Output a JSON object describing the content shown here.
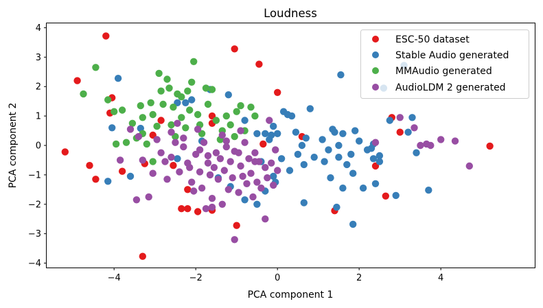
{
  "chart_data": {
    "type": "scatter",
    "title": "Loudness",
    "xlabel": "PCA component 1",
    "ylabel": "PCA component 2",
    "xlim": [
      -5.65,
      6.3
    ],
    "ylim": [
      -4.15,
      4.15
    ],
    "xticks": [
      -4,
      -2,
      0,
      2,
      4
    ],
    "yticks": [
      -4,
      -3,
      -2,
      -1,
      0,
      1,
      2,
      3,
      4
    ],
    "xtick_labels": [
      "−4",
      "−2",
      "0",
      "2",
      "4"
    ],
    "ytick_labels": [
      "−4",
      "−3",
      "−2",
      "−1",
      "0",
      "1",
      "2",
      "3",
      "4"
    ],
    "grid": false,
    "legend_position": "top-right",
    "series": [
      {
        "name": "ESC-50 dataset",
        "color": "#e41a1c",
        "points": [
          [
            -4.2,
            3.72
          ],
          [
            -1.05,
            3.28
          ],
          [
            -0.45,
            2.76
          ],
          [
            -4.9,
            2.2
          ],
          [
            -4.05,
            1.62
          ],
          [
            -4.1,
            1.1
          ],
          [
            -5.2,
            -0.22
          ],
          [
            -4.6,
            -0.68
          ],
          [
            -4.45,
            -1.15
          ],
          [
            -3.8,
            -0.88
          ],
          [
            -3.3,
            -3.77
          ],
          [
            -3.25,
            -0.62
          ],
          [
            -3.05,
            0.35
          ],
          [
            -2.85,
            0.85
          ],
          [
            -2.55,
            -0.68
          ],
          [
            -2.35,
            -2.15
          ],
          [
            -2.2,
            -2.15
          ],
          [
            -2.2,
            -1.5
          ],
          [
            -1.95,
            -2.25
          ],
          [
            -1.6,
            -2.2
          ],
          [
            -1.6,
            0.75
          ],
          [
            -1.6,
            1.0
          ],
          [
            -1.0,
            -2.72
          ],
          [
            0.0,
            1.8
          ],
          [
            -0.35,
            0.05
          ],
          [
            0.6,
            0.3
          ],
          [
            1.4,
            -2.22
          ],
          [
            2.4,
            -0.7
          ],
          [
            2.65,
            -1.72
          ],
          [
            2.8,
            0.95
          ],
          [
            3.0,
            0.45
          ],
          [
            5.2,
            -0.02
          ]
        ]
      },
      {
        "name": "Stable Audio generated",
        "color": "#377eb8",
        "points": [
          [
            -3.9,
            2.28
          ],
          [
            -4.05,
            0.6
          ],
          [
            -4.15,
            -1.22
          ],
          [
            -3.6,
            -1.05
          ],
          [
            -3.35,
            0.58
          ],
          [
            -2.45,
            1.45
          ],
          [
            -2.25,
            1.45
          ],
          [
            -2.1,
            1.55
          ],
          [
            -1.65,
            1.9
          ],
          [
            -1.85,
            0.15
          ],
          [
            -1.2,
            1.72
          ],
          [
            -0.8,
            0.85
          ],
          [
            -0.5,
            0.4
          ],
          [
            -0.3,
            0.4
          ],
          [
            -0.2,
            0.2
          ],
          [
            -0.1,
            0.65
          ],
          [
            0.0,
            0.4
          ],
          [
            0.15,
            1.15
          ],
          [
            0.25,
            1.05
          ],
          [
            0.35,
            1.0
          ],
          [
            0.45,
            0.45
          ],
          [
            0.6,
            0.0
          ],
          [
            0.65,
            -0.65
          ],
          [
            0.7,
            0.25
          ],
          [
            0.8,
            1.25
          ],
          [
            0.9,
            -0.4
          ],
          [
            1.1,
            0.2
          ],
          [
            1.25,
            -0.15
          ],
          [
            1.3,
            -1.1
          ],
          [
            1.4,
            0.45
          ],
          [
            1.5,
            0.0
          ],
          [
            1.6,
            0.4
          ],
          [
            1.7,
            -0.65
          ],
          [
            1.8,
            -0.3
          ],
          [
            1.85,
            -0.95
          ],
          [
            1.9,
            0.5
          ],
          [
            2.0,
            0.15
          ],
          [
            2.1,
            -1.45
          ],
          [
            2.2,
            -0.15
          ],
          [
            2.35,
            0.05
          ],
          [
            2.4,
            -1.3
          ],
          [
            2.5,
            -0.55
          ],
          [
            2.6,
            1.95
          ],
          [
            2.75,
            0.85
          ],
          [
            2.9,
            -1.7
          ],
          [
            3.1,
            2.72
          ],
          [
            3.2,
            0.45
          ],
          [
            3.3,
            0.95
          ],
          [
            3.4,
            -0.25
          ],
          [
            1.55,
            2.4
          ],
          [
            2.3,
            -0.1
          ],
          [
            2.5,
            -0.35
          ],
          [
            -0.8,
            -1.85
          ],
          [
            -0.5,
            -2.0
          ],
          [
            -0.3,
            -1.55
          ],
          [
            -0.1,
            -1.05
          ],
          [
            0.1,
            -0.45
          ],
          [
            0.3,
            -0.85
          ],
          [
            -0.4,
            -0.55
          ],
          [
            -1.15,
            -1.4
          ],
          [
            -1.45,
            -1.1
          ],
          [
            0.65,
            -1.95
          ],
          [
            1.5,
            -0.4
          ],
          [
            1.6,
            -1.45
          ],
          [
            1.45,
            -2.1
          ],
          [
            1.85,
            -2.68
          ],
          [
            3.7,
            -1.52
          ],
          [
            2.35,
            -0.45
          ],
          [
            -2.45,
            -0.45
          ],
          [
            -0.15,
            0.35
          ],
          [
            0.5,
            -0.3
          ],
          [
            1.15,
            -0.55
          ],
          [
            1.35,
            0.55
          ],
          [
            -0.05,
            -1.25
          ]
        ]
      },
      {
        "name": "MMAudio generated",
        "color": "#4daf4a",
        "points": [
          [
            -4.75,
            1.75
          ],
          [
            -4.45,
            2.65
          ],
          [
            -4.15,
            1.55
          ],
          [
            -4.0,
            1.15
          ],
          [
            -3.8,
            1.2
          ],
          [
            -3.7,
            0.1
          ],
          [
            -3.55,
            0.75
          ],
          [
            -3.45,
            0.25
          ],
          [
            -3.3,
            0.95
          ],
          [
            -3.3,
            0.4
          ],
          [
            -3.2,
            0.05
          ],
          [
            -3.1,
            1.45
          ],
          [
            -3.05,
            1.05
          ],
          [
            -2.95,
            0.65
          ],
          [
            -2.9,
            2.45
          ],
          [
            -2.8,
            1.4
          ],
          [
            -2.7,
            2.25
          ],
          [
            -2.65,
            1.95
          ],
          [
            -2.6,
            0.7
          ],
          [
            -2.55,
            1.3
          ],
          [
            -2.5,
            0.3
          ],
          [
            -2.45,
            1.75
          ],
          [
            -2.35,
            0.95
          ],
          [
            -2.25,
            0.6
          ],
          [
            -2.2,
            1.85
          ],
          [
            -2.15,
            1.2
          ],
          [
            -2.05,
            2.85
          ],
          [
            -1.95,
            1.05
          ],
          [
            -1.85,
            0.4
          ],
          [
            -1.75,
            1.95
          ],
          [
            -1.7,
            1.4
          ],
          [
            -1.6,
            1.9
          ],
          [
            -1.5,
            0.85
          ],
          [
            -1.4,
            0.2
          ],
          [
            -1.35,
            0.5
          ],
          [
            -1.25,
            1.0
          ],
          [
            -1.15,
            0.7
          ],
          [
            -1.05,
            0.3
          ],
          [
            -0.9,
            1.35
          ],
          [
            -0.8,
            0.5
          ],
          [
            -0.65,
            1.3
          ],
          [
            -0.55,
            1.0
          ],
          [
            -3.95,
            0.05
          ],
          [
            -3.05,
            -0.55
          ],
          [
            -2.85,
            1.85
          ],
          [
            -2.35,
            1.65
          ],
          [
            -1.9,
            0.7
          ],
          [
            -1.0,
            1.15
          ],
          [
            -2.1,
            2.15
          ],
          [
            -3.35,
            1.35
          ]
        ]
      },
      {
        "name": "AudioLDM 2 generated",
        "color": "#984ea3",
        "points": [
          [
            -3.6,
            0.55
          ],
          [
            -3.4,
            0.3
          ],
          [
            -3.3,
            -0.5
          ],
          [
            -3.05,
            -0.95
          ],
          [
            -2.95,
            0.2
          ],
          [
            -2.85,
            -0.25
          ],
          [
            -2.75,
            -0.55
          ],
          [
            -2.7,
            -1.15
          ],
          [
            -2.6,
            -0.4
          ],
          [
            -2.5,
            0.1
          ],
          [
            -2.4,
            -0.9
          ],
          [
            -2.3,
            -0.05
          ],
          [
            -2.2,
            -0.6
          ],
          [
            -2.1,
            -1.25
          ],
          [
            -2.0,
            -0.3
          ],
          [
            -1.95,
            0.55
          ],
          [
            -1.9,
            -0.9
          ],
          [
            -1.85,
            -1.45
          ],
          [
            -1.8,
            0.1
          ],
          [
            -1.7,
            -0.6
          ],
          [
            -1.65,
            -1.0
          ],
          [
            -1.6,
            -1.8
          ],
          [
            -1.5,
            -0.25
          ],
          [
            -1.45,
            -1.15
          ],
          [
            -1.4,
            -0.45
          ],
          [
            -1.35,
            -2.0
          ],
          [
            -1.3,
            -0.85
          ],
          [
            -1.25,
            0.15
          ],
          [
            -1.2,
            -1.5
          ],
          [
            -1.15,
            -0.55
          ],
          [
            -1.1,
            -1.1
          ],
          [
            -1.05,
            -0.2
          ],
          [
            -0.95,
            -1.6
          ],
          [
            -0.9,
            -0.7
          ],
          [
            -0.85,
            -1.05
          ],
          [
            -0.8,
            0.1
          ],
          [
            -0.75,
            -1.3
          ],
          [
            -0.7,
            -0.45
          ],
          [
            -0.65,
            -0.95
          ],
          [
            -0.6,
            -1.75
          ],
          [
            -0.55,
            -0.25
          ],
          [
            -0.5,
            -1.25
          ],
          [
            -0.45,
            -0.55
          ],
          [
            -0.4,
            -1.45
          ],
          [
            -0.3,
            -0.75
          ],
          [
            -0.25,
            -1.1
          ],
          [
            -0.2,
            0.85
          ],
          [
            -0.15,
            -0.6
          ],
          [
            -0.1,
            -1.35
          ],
          [
            -0.05,
            -0.15
          ],
          [
            -1.05,
            -3.2
          ],
          [
            -0.3,
            -2.5
          ],
          [
            -1.6,
            -2.1
          ],
          [
            -3.45,
            -1.85
          ],
          [
            -3.15,
            -1.75
          ],
          [
            -2.05,
            -1.55
          ],
          [
            -1.75,
            -2.15
          ],
          [
            -2.15,
            -0.75
          ],
          [
            -2.45,
            0.75
          ],
          [
            -1.55,
            -0.75
          ],
          [
            -1.35,
            0.35
          ],
          [
            -0.9,
            0.5
          ],
          [
            -3.85,
            -0.5
          ],
          [
            3.0,
            0.95
          ],
          [
            3.35,
            0.6
          ],
          [
            3.5,
            0.0
          ],
          [
            3.65,
            0.05
          ],
          [
            3.75,
            0.0
          ],
          [
            4.0,
            0.2
          ],
          [
            4.35,
            0.15
          ],
          [
            4.7,
            -0.7
          ],
          [
            2.4,
            0.1
          ],
          [
            -2.6,
            0.45
          ],
          [
            -1.25,
            -0.05
          ],
          [
            -0.55,
            -0.55
          ],
          [
            0.0,
            -0.85
          ],
          [
            -0.95,
            -0.25
          ],
          [
            -1.7,
            -0.35
          ],
          [
            -2.3,
            0.25
          ],
          [
            -1.9,
            -0.15
          ]
        ]
      }
    ]
  }
}
